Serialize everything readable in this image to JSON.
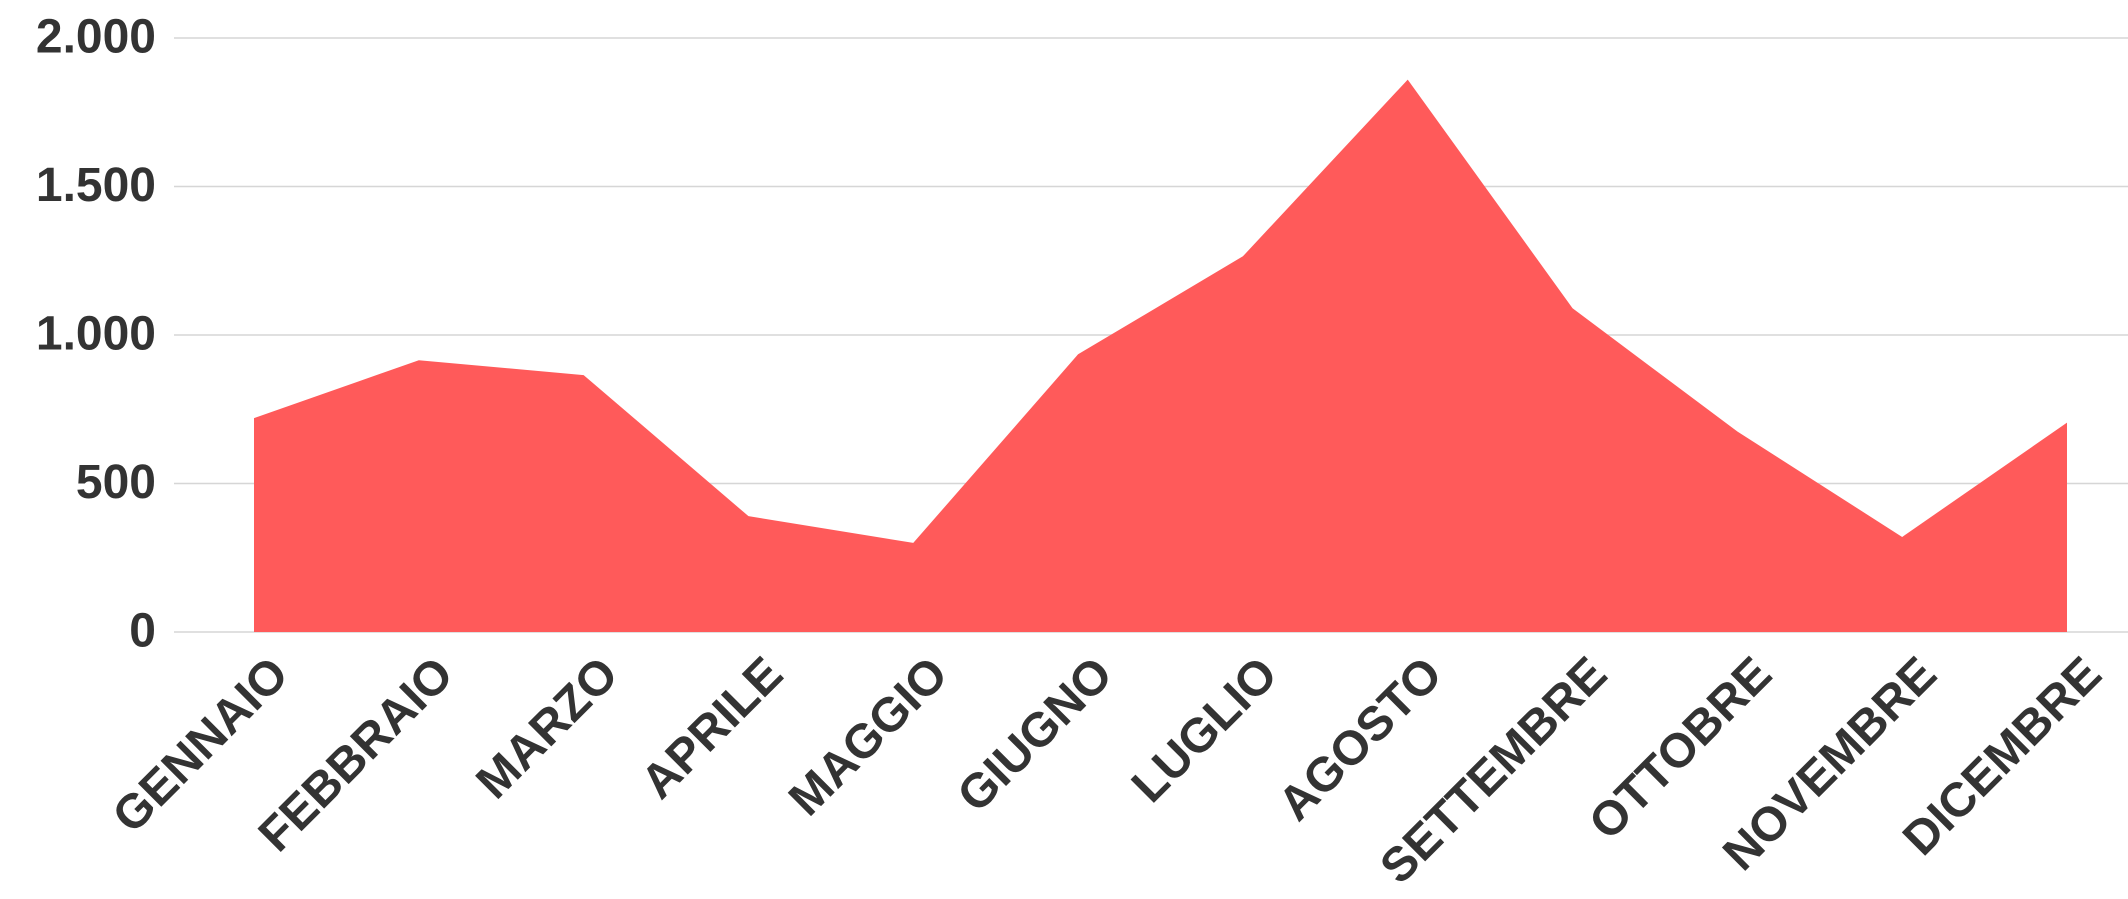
{
  "chart_data": {
    "type": "area",
    "categories": [
      "GENNAIO",
      "FEBBRAIO",
      "MARZO",
      "APRILE",
      "MAGGIO",
      "GIUGNO",
      "LUGLIO",
      "AGOSTO",
      "SETTEMBRE",
      "OTTOBRE",
      "NOVEMBRE",
      "DICEMBRE"
    ],
    "values": [
      720,
      915,
      865,
      390,
      300,
      935,
      1265,
      1860,
      1090,
      675,
      320,
      705
    ],
    "color": "#ff5a5a",
    "ylim": [
      0,
      2000
    ],
    "yticks": [
      0,
      500,
      {
        "value": 1000,
        "label": "1.000"
      },
      {
        "value": 1500,
        "label": "1.500"
      },
      {
        "value": 2000,
        "label": "2.000"
      }
    ],
    "grid": true
  }
}
